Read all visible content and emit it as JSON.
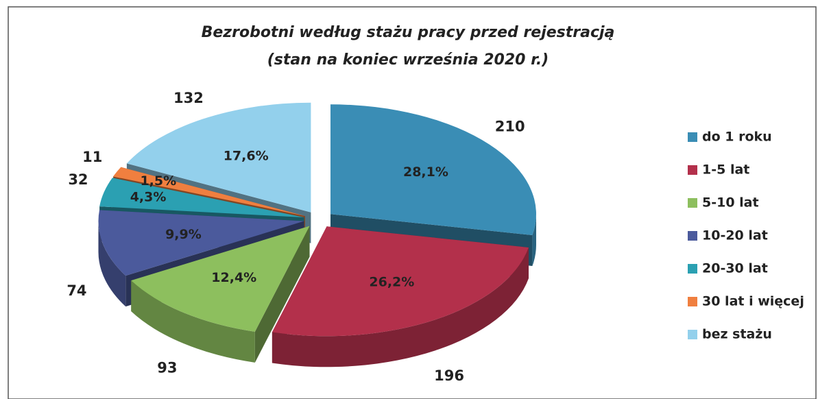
{
  "chart_data": {
    "type": "pie3d",
    "title": "Bezrobotni według stażu pracy przed rejestracją",
    "subtitle": "(stan na koniec września 2020 r.)",
    "categories": [
      "do 1 roku",
      "1-5 lat",
      "5-10 lat",
      "10-20 lat",
      "20-30 lat",
      "30 lat i więcej",
      "bez stażu"
    ],
    "values": [
      210,
      196,
      93,
      74,
      32,
      11,
      132
    ],
    "shares": [
      28.1,
      26.2,
      12.4,
      9.9,
      4.3,
      1.5,
      17.6
    ],
    "share_labels": [
      "28,1%",
      "26,2%",
      "12,4%",
      "9,9%",
      "4,3%",
      "1,5%",
      "17,6%"
    ],
    "colors": [
      "#3a8db5",
      "#b3304b",
      "#8dbf5e",
      "#4b5a9c",
      "#2ba0b2",
      "#f07f3f",
      "#93d0ec"
    ],
    "legend": "right"
  }
}
